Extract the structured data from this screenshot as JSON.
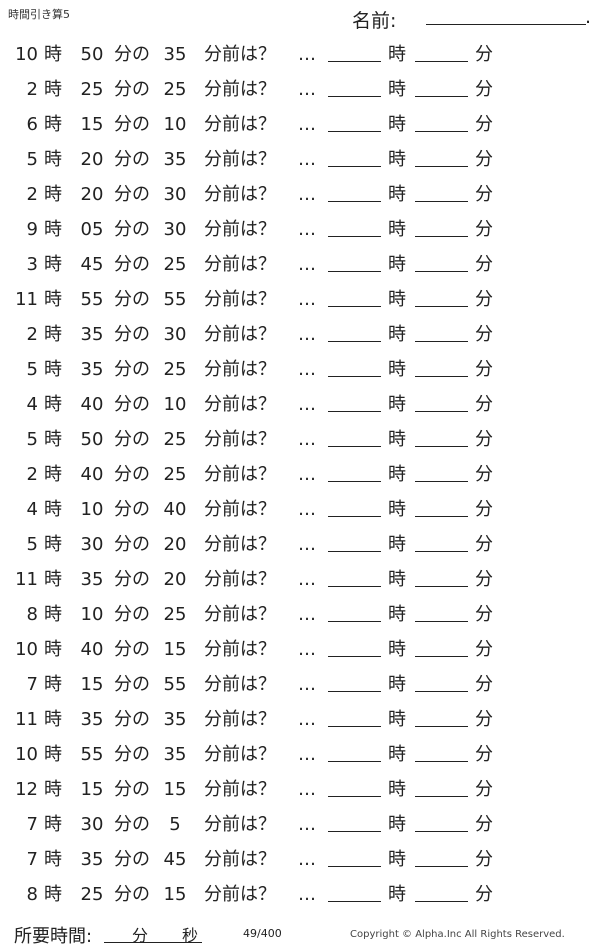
{
  "header": {
    "title": "時間引き算5",
    "name_label": "名前:",
    "name_end": "."
  },
  "labels": {
    "hour": "時",
    "min_of": "分の",
    "min_before": "分前は？",
    "dots": "…",
    "ans_hour": "時",
    "ans_min": "分"
  },
  "problems": [
    {
      "h": "10",
      "m": "50",
      "n": "35"
    },
    {
      "h": "2",
      "m": "25",
      "n": "25"
    },
    {
      "h": "6",
      "m": "15",
      "n": "10"
    },
    {
      "h": "5",
      "m": "20",
      "n": "35"
    },
    {
      "h": "2",
      "m": "20",
      "n": "30"
    },
    {
      "h": "9",
      "m": "05",
      "n": "30"
    },
    {
      "h": "3",
      "m": "45",
      "n": "25"
    },
    {
      "h": "11",
      "m": "55",
      "n": "55"
    },
    {
      "h": "2",
      "m": "35",
      "n": "30"
    },
    {
      "h": "5",
      "m": "35",
      "n": "25"
    },
    {
      "h": "4",
      "m": "40",
      "n": "10"
    },
    {
      "h": "5",
      "m": "50",
      "n": "25"
    },
    {
      "h": "2",
      "m": "40",
      "n": "25"
    },
    {
      "h": "4",
      "m": "10",
      "n": "40"
    },
    {
      "h": "5",
      "m": "30",
      "n": "20"
    },
    {
      "h": "11",
      "m": "35",
      "n": "20"
    },
    {
      "h": "8",
      "m": "10",
      "n": "25"
    },
    {
      "h": "10",
      "m": "40",
      "n": "15"
    },
    {
      "h": "7",
      "m": "15",
      "n": "55"
    },
    {
      "h": "11",
      "m": "35",
      "n": "35"
    },
    {
      "h": "10",
      "m": "55",
      "n": "35"
    },
    {
      "h": "12",
      "m": "15",
      "n": "15"
    },
    {
      "h": "7",
      "m": "30",
      "n": "5"
    },
    {
      "h": "7",
      "m": "35",
      "n": "45"
    },
    {
      "h": "8",
      "m": "25",
      "n": "15"
    }
  ],
  "footer": {
    "required_time": "所要時間:",
    "min": "分",
    "sec": "秒",
    "page": "49/400",
    "copyright": "Copyright ©  Alpha.Inc All Rights Reserved."
  }
}
